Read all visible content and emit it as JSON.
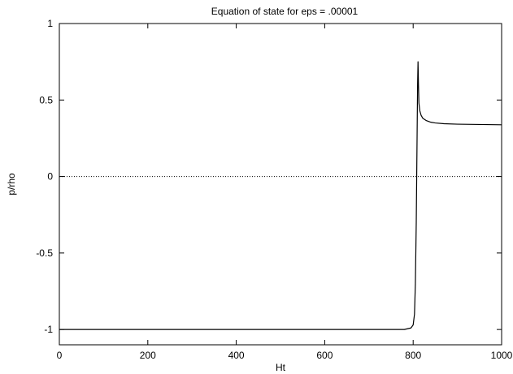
{
  "chart_data": {
    "type": "line",
    "title": "Equation of state for eps = .00001",
    "xlabel": "Ht",
    "ylabel": "p/rho",
    "xlim": [
      0,
      1000
    ],
    "ylim": [
      -1.1,
      1
    ],
    "x_ticks": [
      0,
      200,
      400,
      600,
      800,
      1000
    ],
    "x_tick_labels": [
      "0",
      "200",
      "400",
      "600",
      "800",
      "1000"
    ],
    "y_ticks": [
      -1,
      -0.5,
      0,
      0.5,
      1
    ],
    "y_tick_labels": [
      "-1",
      "-0.5",
      "0",
      "0.5",
      "1"
    ],
    "grid": false,
    "reference_lines": [
      {
        "y": 0,
        "style": "dotted"
      }
    ],
    "series": [
      {
        "color": "#000000",
        "x": [
          0,
          100,
          200,
          300,
          400,
          500,
          600,
          700,
          780,
          795,
          800,
          803,
          805,
          807,
          808,
          809,
          810,
          811,
          812,
          813,
          815,
          818,
          822,
          830,
          840,
          850,
          870,
          900,
          950,
          1000
        ],
        "y": [
          -1.0,
          -1.0,
          -1.0,
          -1.0,
          -1.0,
          -1.0,
          -1.0,
          -1.0,
          -1.0,
          -0.99,
          -0.97,
          -0.9,
          -0.7,
          -0.3,
          0.0,
          0.3,
          0.6,
          0.75,
          0.6,
          0.48,
          0.43,
          0.4,
          0.38,
          0.365,
          0.355,
          0.35,
          0.345,
          0.342,
          0.34,
          0.338
        ]
      }
    ]
  }
}
